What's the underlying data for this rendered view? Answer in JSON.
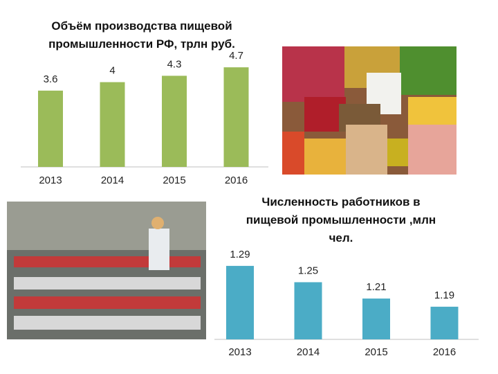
{
  "chart_data": [
    {
      "type": "bar",
      "title": "Объём производства пищевой промышленности РФ, трлн руб.",
      "categories": [
        "2013",
        "2014",
        "2015",
        "2016"
      ],
      "values": [
        3.6,
        4,
        4.3,
        4.7
      ],
      "color": "#9bbb59",
      "ylim": [
        0,
        5
      ]
    },
    {
      "type": "bar",
      "title": "Численность работников в пищевой промышленности ,млн чел.",
      "categories": [
        "2013",
        "2014",
        "2015",
        "2016"
      ],
      "values": [
        1.29,
        1.25,
        1.21,
        1.19
      ],
      "color": "#4bacc6",
      "ylim": [
        1.11,
        1.3
      ]
    }
  ]
}
